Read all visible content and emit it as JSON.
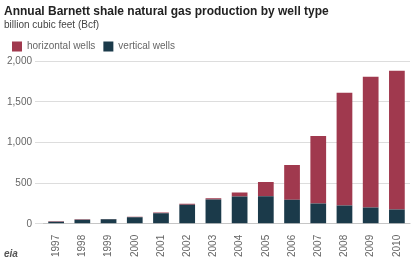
{
  "chart_data": {
    "type": "bar",
    "stacked": true,
    "title": "Annual Barnett shale natural gas production by well type",
    "subtitle": "billion cubic feet (Bcf)",
    "categories": [
      "1997",
      "1998",
      "1999",
      "2000",
      "2001",
      "2002",
      "2003",
      "2004",
      "2005",
      "2006",
      "2007",
      "2008",
      "2009",
      "2010"
    ],
    "series": [
      {
        "name": "vertical wells",
        "color": "#1b3a4a",
        "values": [
          25,
          50,
          55,
          80,
          130,
          235,
          300,
          335,
          340,
          295,
          250,
          225,
          200,
          175
        ]
      },
      {
        "name": "horizontal wells",
        "color": "#a0394e",
        "values": [
          5,
          5,
          5,
          5,
          10,
          10,
          15,
          50,
          175,
          430,
          830,
          1390,
          1610,
          1710
        ]
      }
    ],
    "ylim": [
      0,
      2000
    ],
    "yticks": [
      0,
      500,
      {
        "value": 1000,
        "label": "1,000"
      },
      {
        "value": 1500,
        "label": "1,500"
      },
      {
        "value": 2000,
        "label": "2,000"
      }
    ],
    "grid": true,
    "legend": "upper left",
    "annotations": [
      "eia"
    ]
  }
}
